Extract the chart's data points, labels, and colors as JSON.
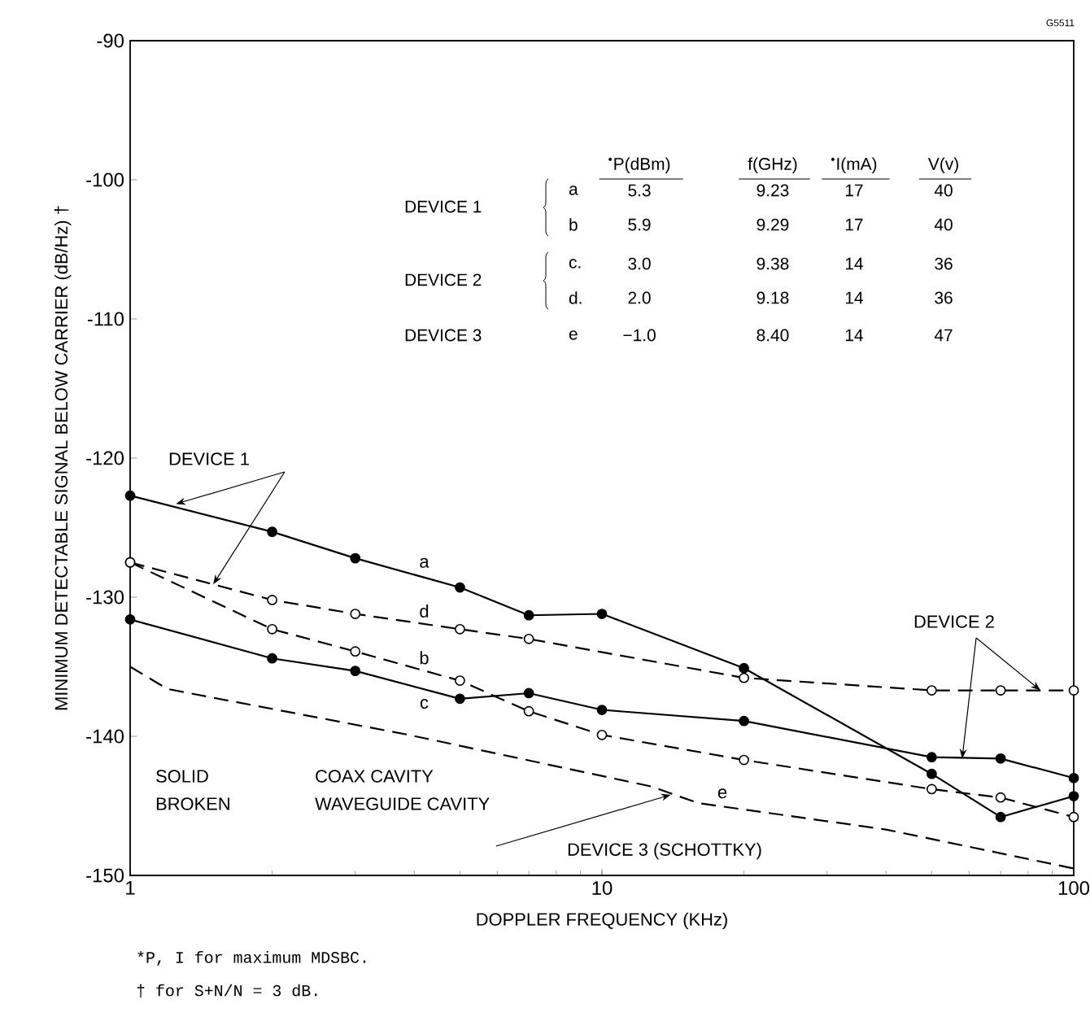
{
  "chart_data": {
    "type": "line",
    "xlabel": "DOPPLER FREQUENCY (KHz)",
    "ylabel": "MINIMUM DETECTABLE SIGNAL BELOW CARRIER (dB/Hz) †",
    "log": "x",
    "xlim": [
      1,
      100
    ],
    "xticks": [
      1,
      10,
      100
    ],
    "ylim": [
      -150,
      -90
    ],
    "yticks": [
      -150,
      -140,
      -130,
      -120,
      -110,
      -100,
      -90
    ],
    "grid": false,
    "legend": false,
    "series": [
      {
        "name": "a",
        "color": "#000000",
        "line_style": "solid",
        "marker": "circle",
        "x": [
          1,
          2,
          3,
          5,
          7,
          10,
          20,
          50,
          70,
          100
        ],
        "values": [
          -122.7,
          -125.3,
          -127.2,
          -129.3,
          -131.3,
          -131.2,
          -135.1,
          -142.7,
          -145.8,
          -144.3
        ]
      },
      {
        "name": "b",
        "color": "#000000",
        "line_style": "dashed",
        "marker": "circle",
        "x": [
          1,
          2,
          3,
          5,
          7,
          10,
          20,
          50,
          70,
          100
        ],
        "values": [
          -127.5,
          -132.3,
          -133.9,
          -136.0,
          -138.2,
          -139.9,
          -141.7,
          -143.8,
          -144.4,
          -145.8
        ]
      },
      {
        "name": "c",
        "color": "#000000",
        "line_style": "solid",
        "marker": "circle",
        "x": [
          1,
          2,
          3,
          5,
          7,
          10,
          20,
          50,
          70,
          100
        ],
        "values": [
          -131.6,
          -134.4,
          -135.3,
          -137.3,
          -136.9,
          -138.1,
          -138.9,
          -141.5,
          -141.6,
          -143.0
        ]
      },
      {
        "name": "d",
        "color": "#000000",
        "line_style": "dashed",
        "marker": "circle",
        "x": [
          1,
          2,
          3,
          5,
          7,
          20,
          50,
          70,
          100
        ],
        "values": [
          -127.5,
          -130.2,
          -131.2,
          -132.3,
          -133.0,
          -135.8,
          -136.7,
          -136.7,
          -136.7
        ]
      },
      {
        "name": "e",
        "color": "#000000",
        "line_style": "dashed",
        "marker": "none",
        "x": [
          1,
          1.2,
          3.9,
          12.7,
          16,
          40,
          100
        ],
        "values": [
          -135.0,
          -136.6,
          -139.9,
          -143.6,
          -144.8,
          -146.7,
          -149.5
        ]
      }
    ],
    "annotations": [
      {
        "text": "DEVICE 1",
        "x": 1.25,
        "y": -123.3
      },
      {
        "text": "DEVICE 2",
        "x": 58,
        "y": -141.6
      },
      {
        "text": "DEVICE 3 (SCHOTTKY)",
        "x": 14,
        "y": -144.2
      },
      "SOLID",
      "BROKEN",
      "COAX CAVITY",
      "WAVEGUIDE CAVITY",
      "G5511",
      "*P, I for maximum MDSBC.",
      "† for S+N/N = 3 dB.",
      "$^{•}$P(dBm)",
      "f(GHz)",
      "$^{•}$I(mA)",
      "V(v)",
      "DEVICE 1",
      "a",
      "5.3",
      "9.23",
      "17",
      "40",
      "b",
      "5.9",
      "9.29",
      "17",
      "40",
      "DEVICE 2",
      "c.",
      "3.0",
      "9.38",
      "14",
      "36",
      "d.",
      "2.0",
      "9.18",
      "14",
      "36",
      "DEVICE 3",
      "e",
      "−1.0",
      "8.40",
      "14",
      "47"
    ]
  }
}
